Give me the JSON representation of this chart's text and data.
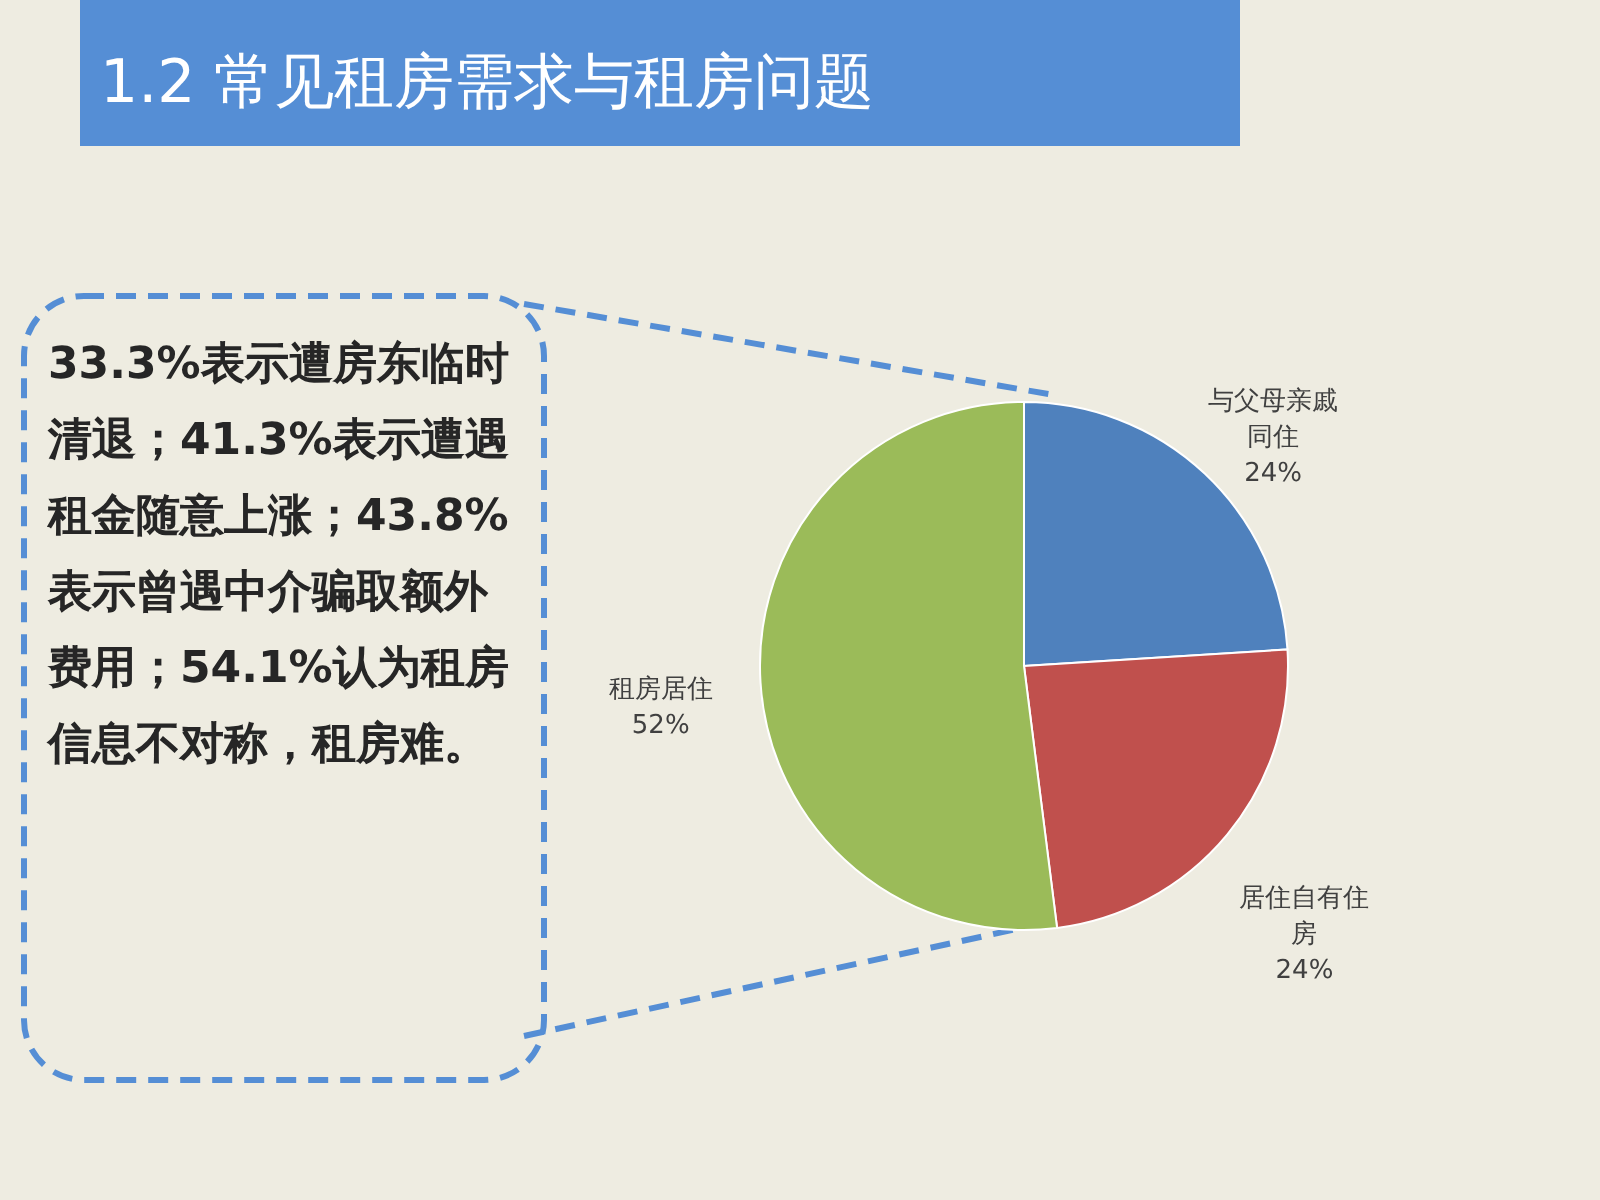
{
  "chart_data": {
    "type": "pie",
    "title": "1.2 常见租房需求与租房问题",
    "categories": [
      "与父母亲戚同住",
      "居住自有住房",
      "租房居住"
    ],
    "values": [
      24,
      24,
      52
    ],
    "colors": [
      "#4f81bd",
      "#c0504d",
      "#9bbb59"
    ],
    "value_labels": [
      "24%",
      "24%",
      "52%"
    ],
    "annotations": [
      "33.3%表示遭房东临时清退；41.3%表示遭遇租金随意上涨；43.8%表示曾遇中介骗取额外费用；54.1%认为租房信息不对称，租房难。"
    ]
  }
}
